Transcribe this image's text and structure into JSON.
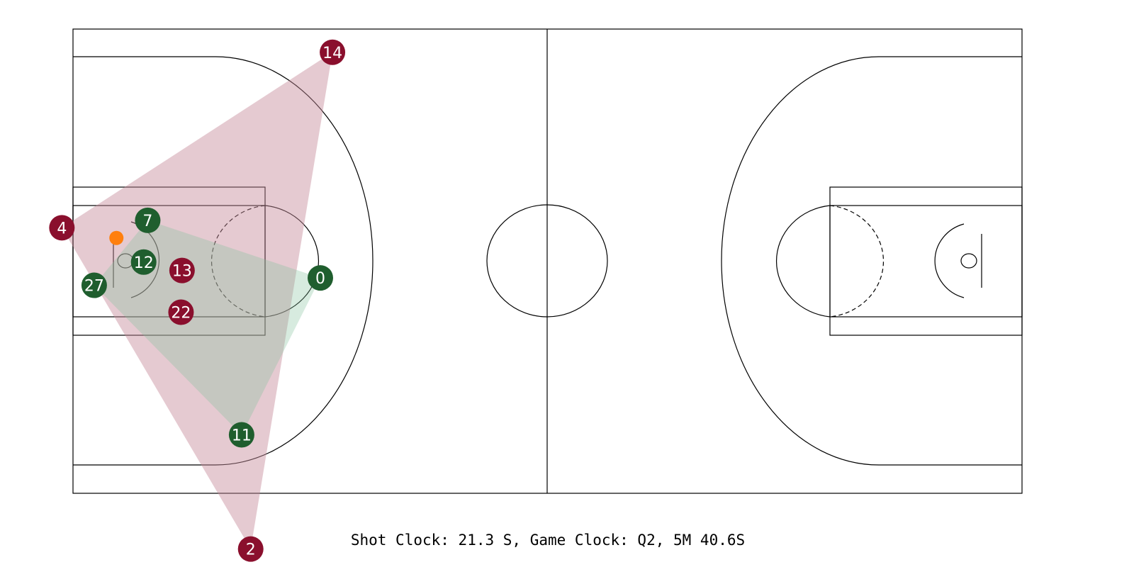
{
  "clock": {
    "text": "Shot Clock: 21.3 S, Game Clock: Q2, 5M 40.6S"
  },
  "colors": {
    "home_team": "#8a0f2d",
    "away_team": "#1f5e2e",
    "ball": "#ff7f0e",
    "home_hull": "#c58a9a",
    "away_hull": "#82c29c",
    "court_lines": "#000000"
  },
  "teams": {
    "home": {
      "color_key": "home_team",
      "players": [
        {
          "number": "14",
          "x": 25.7,
          "y": 2.5
        },
        {
          "number": "4",
          "x": -1.1,
          "y": 21.4
        },
        {
          "number": "13",
          "x": 10.8,
          "y": 26.0
        },
        {
          "number": "22",
          "x": 10.7,
          "y": 30.5
        },
        {
          "number": "2",
          "x": 17.6,
          "y": 56.0
        }
      ]
    },
    "away": {
      "color_key": "away_team",
      "players": [
        {
          "number": "7",
          "x": 7.4,
          "y": 20.6
        },
        {
          "number": "12",
          "x": 7.0,
          "y": 25.1
        },
        {
          "number": "27",
          "x": 2.1,
          "y": 27.6
        },
        {
          "number": "0",
          "x": 24.5,
          "y": 26.8
        },
        {
          "number": "11",
          "x": 16.7,
          "y": 43.7
        }
      ]
    }
  },
  "ball": {
    "x": 4.3,
    "y": 22.5
  }
}
